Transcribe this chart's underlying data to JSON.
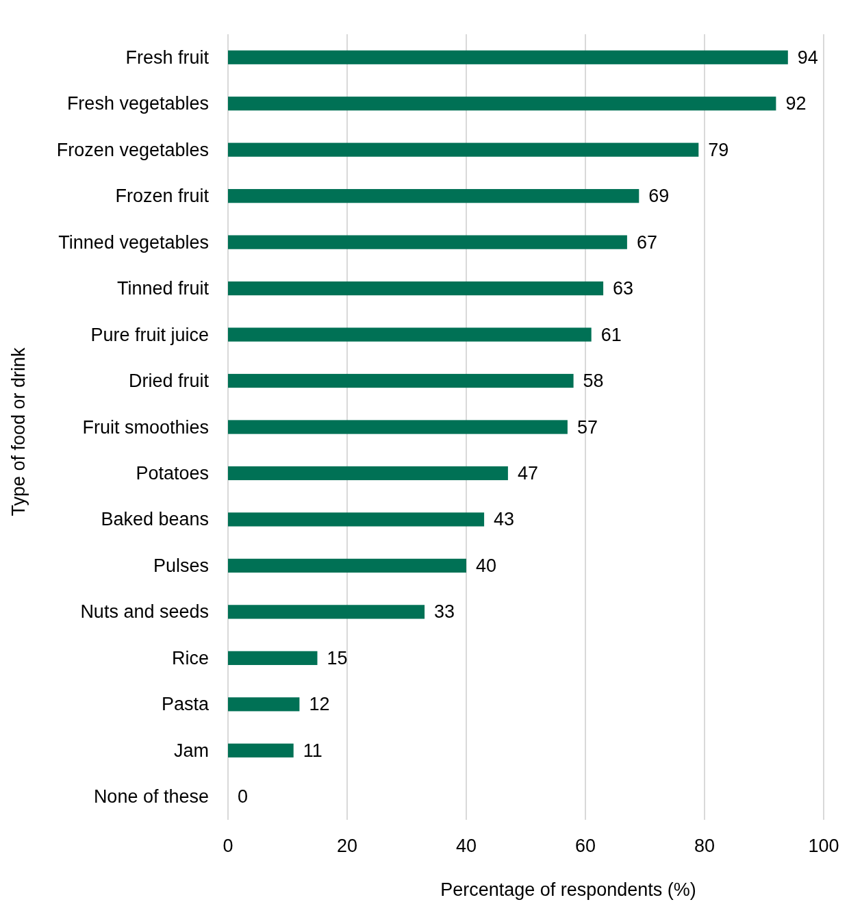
{
  "chart_data": {
    "type": "bar",
    "orientation": "horizontal",
    "xlabel": "Percentage of respondents (%)",
    "ylabel": "Type of food or drink",
    "categories": [
      "Fresh fruit",
      "Fresh vegetables",
      "Frozen vegetables",
      "Frozen fruit",
      "Tinned vegetables",
      "Tinned fruit",
      "Pure fruit juice",
      "Dried fruit",
      "Fruit smoothies",
      "Potatoes",
      "Baked beans",
      "Pulses",
      "Nuts and seeds",
      "Rice",
      "Pasta",
      "Jam",
      "None of these"
    ],
    "values": [
      94,
      92,
      79,
      69,
      67,
      63,
      61,
      58,
      57,
      47,
      43,
      40,
      33,
      15,
      12,
      11,
      0
    ],
    "color": "#007155",
    "xlim": [
      0,
      100
    ],
    "xticks": [
      0,
      20,
      40,
      60,
      80,
      100
    ],
    "grid": "x",
    "data_labels": true
  }
}
